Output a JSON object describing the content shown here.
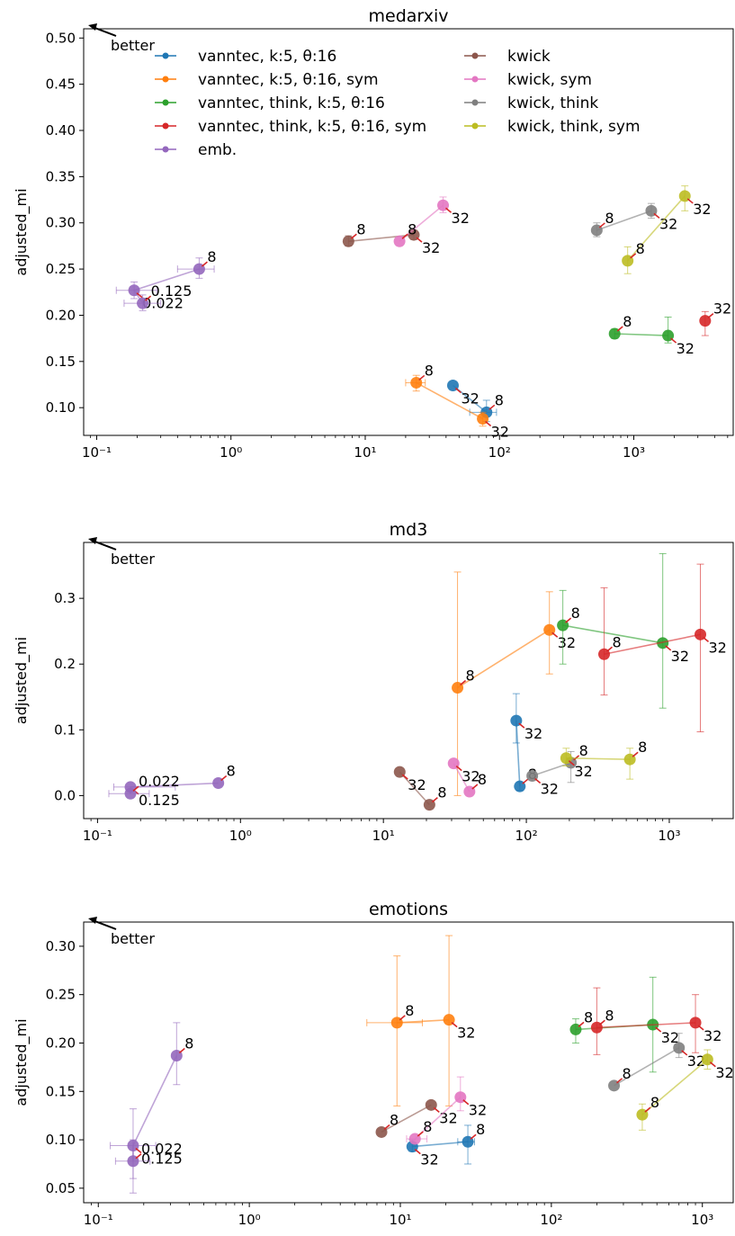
{
  "legend": {
    "placement": "upper-center",
    "entries": [
      {
        "label": "vanntec, k:5, θ:16",
        "color": "#1f77b4"
      },
      {
        "label": "vanntec, k:5, θ:16, sym",
        "color": "#ff7f0e"
      },
      {
        "label": "vanntec, think, k:5, θ:16",
        "color": "#2ca02c"
      },
      {
        "label": "vanntec, think, k:5, θ:16, sym",
        "color": "#d62728"
      },
      {
        "label": "emb.",
        "color": "#9467bd"
      },
      {
        "label": "kwick",
        "color": "#8c564b"
      },
      {
        "label": "kwick, sym",
        "color": "#e377c2"
      },
      {
        "label": "kwick, think",
        "color": "#7f7f7f"
      },
      {
        "label": "kwick, think, sym",
        "color": "#bcbd22"
      }
    ]
  },
  "chart_data": [
    {
      "type": "scatter",
      "title": "medarxiv",
      "xlabel": "",
      "ylabel": "adjusted_mi",
      "x_scale": "log",
      "xlim": [
        0.08,
        5500
      ],
      "ylim": [
        0.07,
        0.51
      ],
      "xticks": [
        0.1,
        1,
        10,
        100,
        1000
      ],
      "xtick_labels": [
        "10⁻¹",
        "10⁰",
        "10¹",
        "10²",
        "10³"
      ],
      "yticks": [
        0.1,
        0.15,
        0.2,
        0.25,
        0.3,
        0.35,
        0.4,
        0.45,
        0.5
      ],
      "ytick_labels": [
        "0.10",
        "0.15",
        "0.20",
        "0.25",
        "0.30",
        "0.35",
        "0.40",
        "0.45",
        "0.50"
      ],
      "annotation": "better",
      "series": [
        {
          "name": "vanntec, k:5, θ:16",
          "points": [
            {
              "x": 80,
              "y": 0.095,
              "label": "8",
              "xerr": [
                60,
                95
              ],
              "yerr": [
                0.085,
                0.108
              ]
            },
            {
              "x": 45,
              "y": 0.124,
              "label": "32"
            }
          ]
        },
        {
          "name": "vanntec, k:5, θ:16, sym",
          "points": [
            {
              "x": 24,
              "y": 0.127,
              "label": "8",
              "xerr": [
                20,
                28
              ],
              "yerr": [
                0.118,
                0.135
              ]
            },
            {
              "x": 75,
              "y": 0.088,
              "label": "32",
              "yerr": [
                0.08,
                0.095
              ]
            }
          ]
        },
        {
          "name": "vanntec, think, k:5, θ:16",
          "points": [
            {
              "x": 720,
              "y": 0.18,
              "label": "8",
              "yerr": [
                0.175,
                0.185
              ]
            },
            {
              "x": 1800,
              "y": 0.178,
              "label": "32",
              "yerr": [
                0.17,
                0.198
              ]
            }
          ]
        },
        {
          "name": "vanntec, think, k:5, θ:16, sym",
          "points": [
            {
              "x": 3400,
              "y": 0.194,
              "label": "32",
              "yerr": [
                0.178,
                0.204
              ]
            }
          ]
        },
        {
          "name": "emb.",
          "points": [
            {
              "x": 0.58,
              "y": 0.25,
              "label": "8",
              "xerr": [
                0.4,
                0.75
              ],
              "yerr": [
                0.24,
                0.262
              ]
            },
            {
              "x": 0.19,
              "y": 0.227,
              "label": "0.022",
              "xerr": [
                0.14,
                0.28
              ],
              "yerr": [
                0.218,
                0.236
              ]
            },
            {
              "x": 0.22,
              "y": 0.213,
              "label": "0.125",
              "xerr": [
                0.16,
                0.3
              ],
              "yerr": [
                0.205,
                0.222
              ]
            }
          ]
        },
        {
          "name": "kwick",
          "points": [
            {
              "x": 7.5,
              "y": 0.28,
              "label": "8",
              "yerr": [
                0.275,
                0.286
              ]
            },
            {
              "x": 23,
              "y": 0.287,
              "label": "32",
              "yerr": [
                0.282,
                0.292
              ]
            }
          ]
        },
        {
          "name": "kwick, sym",
          "points": [
            {
              "x": 18,
              "y": 0.28,
              "label": "8"
            },
            {
              "x": 38,
              "y": 0.319,
              "label": "32",
              "yerr": [
                0.311,
                0.328
              ]
            }
          ]
        },
        {
          "name": "kwick, think",
          "points": [
            {
              "x": 530,
              "y": 0.292,
              "label": "8",
              "yerr": [
                0.285,
                0.3
              ]
            },
            {
              "x": 1350,
              "y": 0.313,
              "label": "32",
              "yerr": [
                0.305,
                0.321
              ]
            }
          ]
        },
        {
          "name": "kwick, think, sym",
          "points": [
            {
              "x": 900,
              "y": 0.259,
              "label": "8",
              "yerr": [
                0.245,
                0.274
              ]
            },
            {
              "x": 2400,
              "y": 0.329,
              "label": "32",
              "yerr": [
                0.313,
                0.34
              ]
            }
          ]
        }
      ]
    },
    {
      "type": "scatter",
      "title": "md3",
      "xlabel": "",
      "ylabel": "adjusted_mi",
      "x_scale": "log",
      "xlim": [
        0.08,
        2800
      ],
      "ylim": [
        -0.035,
        0.385
      ],
      "xticks": [
        0.1,
        1,
        10,
        100,
        1000
      ],
      "xtick_labels": [
        "10⁻¹",
        "10⁰",
        "10¹",
        "10²",
        "10³"
      ],
      "yticks": [
        0.0,
        0.1,
        0.2,
        0.3
      ],
      "ytick_labels": [
        "0.0",
        "0.1",
        "0.2",
        "0.3"
      ],
      "annotation": "better",
      "series": [
        {
          "name": "vanntec, k:5, θ:16",
          "points": [
            {
              "x": 90,
              "y": 0.014,
              "label": "8",
              "yerr": [
                0.008,
                0.02
              ]
            },
            {
              "x": 85,
              "y": 0.114,
              "label": "32",
              "yerr": [
                0.08,
                0.155
              ]
            }
          ]
        },
        {
          "name": "vanntec, k:5, θ:16, sym",
          "points": [
            {
              "x": 33,
              "y": 0.164,
              "label": "8",
              "yerr": [
                0.0,
                0.34
              ]
            },
            {
              "x": 145,
              "y": 0.252,
              "label": "32",
              "yerr": [
                0.185,
                0.31
              ]
            }
          ]
        },
        {
          "name": "vanntec, think, k:5, θ:16",
          "points": [
            {
              "x": 180,
              "y": 0.259,
              "label": "8",
              "yerr": [
                0.2,
                0.312
              ]
            },
            {
              "x": 900,
              "y": 0.232,
              "label": "32",
              "yerr": [
                0.133,
                0.368
              ]
            }
          ]
        },
        {
          "name": "vanntec, think, k:5, θ:16, sym",
          "points": [
            {
              "x": 350,
              "y": 0.215,
              "label": "8",
              "yerr": [
                0.153,
                0.316
              ]
            },
            {
              "x": 1650,
              "y": 0.245,
              "label": "32",
              "yerr": [
                0.097,
                0.352
              ]
            }
          ]
        },
        {
          "name": "emb.",
          "points": [
            {
              "x": 0.7,
              "y": 0.019,
              "label": "8"
            },
            {
              "x": 0.17,
              "y": 0.013,
              "label": "0.125",
              "xerr": [
                0.13,
                0.35
              ]
            },
            {
              "x": 0.17,
              "y": 0.003,
              "label": "0.022",
              "xerr": [
                0.12,
                0.23
              ]
            }
          ]
        },
        {
          "name": "kwick",
          "points": [
            {
              "x": 21,
              "y": -0.014,
              "label": "8"
            },
            {
              "x": 13,
              "y": 0.036,
              "label": "32"
            }
          ]
        },
        {
          "name": "kwick, sym",
          "points": [
            {
              "x": 40,
              "y": 0.006,
              "label": "8"
            },
            {
              "x": 31,
              "y": 0.049,
              "label": "32"
            }
          ]
        },
        {
          "name": "kwick, think",
          "points": [
            {
              "x": 205,
              "y": 0.05,
              "label": "8",
              "yerr": [
                0.02,
                0.067
              ]
            },
            {
              "x": 110,
              "y": 0.03,
              "label": "32"
            }
          ]
        },
        {
          "name": "kwick, think, sym",
          "points": [
            {
              "x": 530,
              "y": 0.055,
              "label": "8",
              "yerr": [
                0.025,
                0.072
              ]
            },
            {
              "x": 190,
              "y": 0.057,
              "label": "32",
              "yerr": [
                0.045,
                0.072
              ]
            }
          ]
        }
      ]
    },
    {
      "type": "scatter",
      "title": "emotions",
      "xlabel": "",
      "ylabel": "adjusted_mi",
      "x_scale": "log",
      "xlim": [
        0.08,
        1600
      ],
      "ylim": [
        0.035,
        0.325
      ],
      "xticks": [
        0.1,
        1,
        10,
        100,
        1000
      ],
      "xtick_labels": [
        "10⁻¹",
        "10⁰",
        "10¹",
        "10²",
        "10³"
      ],
      "yticks": [
        0.05,
        0.1,
        0.15,
        0.2,
        0.25,
        0.3
      ],
      "ytick_labels": [
        "0.05",
        "0.10",
        "0.15",
        "0.20",
        "0.25",
        "0.30"
      ],
      "annotation": "better",
      "series": [
        {
          "name": "vanntec, k:5, θ:16",
          "points": [
            {
              "x": 28,
              "y": 0.098,
              "label": "8",
              "xerr": [
                24,
                31
              ],
              "yerr": [
                0.075,
                0.115
              ]
            },
            {
              "x": 12,
              "y": 0.093,
              "label": "32",
              "yerr": [
                0.088,
                0.1
              ]
            }
          ]
        },
        {
          "name": "vanntec, k:5, θ:16, sym",
          "points": [
            {
              "x": 9.5,
              "y": 0.221,
              "label": "8",
              "xerr": [
                6,
                14
              ],
              "yerr": [
                0.135,
                0.29
              ]
            },
            {
              "x": 21,
              "y": 0.224,
              "label": "32",
              "yerr": [
                0.135,
                0.311
              ]
            }
          ]
        },
        {
          "name": "vanntec, think, k:5, θ:16",
          "points": [
            {
              "x": 145,
              "y": 0.214,
              "label": "8",
              "yerr": [
                0.2,
                0.225
              ]
            },
            {
              "x": 470,
              "y": 0.219,
              "label": "32",
              "yerr": [
                0.17,
                0.268
              ]
            }
          ]
        },
        {
          "name": "vanntec, think, k:5, θ:16, sym",
          "points": [
            {
              "x": 200,
              "y": 0.216,
              "label": "8",
              "yerr": [
                0.188,
                0.257
              ]
            },
            {
              "x": 900,
              "y": 0.221,
              "label": "32",
              "yerr": [
                0.19,
                0.25
              ]
            }
          ]
        },
        {
          "name": "emb.",
          "points": [
            {
              "x": 0.33,
              "y": 0.187,
              "label": "8",
              "yerr": [
                0.157,
                0.221
              ]
            },
            {
              "x": 0.17,
              "y": 0.094,
              "label": "0.125",
              "xerr": [
                0.12,
                0.24
              ],
              "yerr": [
                0.06,
                0.132
              ]
            },
            {
              "x": 0.17,
              "y": 0.078,
              "label": "0.022",
              "xerr": [
                0.13,
                0.22
              ],
              "yerr": [
                0.045,
                0.1
              ]
            }
          ]
        },
        {
          "name": "kwick",
          "points": [
            {
              "x": 7.5,
              "y": 0.108,
              "label": "8"
            },
            {
              "x": 16,
              "y": 0.136,
              "label": "32"
            }
          ]
        },
        {
          "name": "kwick, sym",
          "points": [
            {
              "x": 12.5,
              "y": 0.101,
              "label": "8",
              "xerr": [
                11,
                15
              ]
            },
            {
              "x": 25,
              "y": 0.144,
              "label": "32",
              "yerr": [
                0.13,
                0.165
              ]
            }
          ]
        },
        {
          "name": "kwick, think",
          "points": [
            {
              "x": 260,
              "y": 0.156,
              "label": "8"
            },
            {
              "x": 700,
              "y": 0.195,
              "label": "32",
              "yerr": [
                0.185,
                0.21
              ]
            }
          ]
        },
        {
          "name": "kwick, think, sym",
          "points": [
            {
              "x": 400,
              "y": 0.126,
              "label": "8",
              "yerr": [
                0.11,
                0.137
              ]
            },
            {
              "x": 1080,
              "y": 0.183,
              "label": "32",
              "yerr": [
                0.173,
                0.193
              ]
            }
          ]
        }
      ]
    }
  ]
}
